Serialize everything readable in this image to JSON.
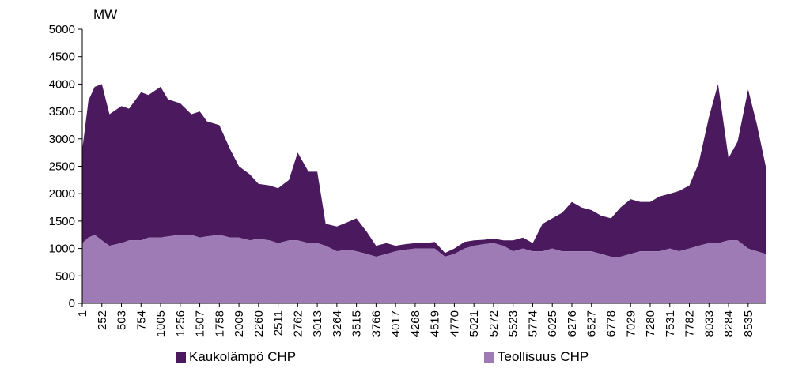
{
  "chart_data": {
    "type": "area",
    "stacked": true,
    "unit_label": "MW",
    "ylim": [
      0,
      5000
    ],
    "y_ticks": [
      0,
      500,
      1000,
      1500,
      2000,
      2500,
      3000,
      3500,
      4000,
      4500,
      5000
    ],
    "xlim": [
      1,
      8760
    ],
    "x_ticks": [
      1,
      252,
      503,
      754,
      1005,
      1256,
      1507,
      1758,
      2009,
      2260,
      2511,
      2762,
      3013,
      3264,
      3515,
      3766,
      4017,
      4268,
      4519,
      4770,
      5021,
      5272,
      5523,
      5774,
      6025,
      6276,
      6527,
      6778,
      7029,
      7280,
      7531,
      7782,
      8033,
      8284,
      8535
    ],
    "x": [
      1,
      80,
      160,
      252,
      350,
      503,
      600,
      754,
      850,
      1005,
      1100,
      1256,
      1400,
      1507,
      1600,
      1758,
      1900,
      2009,
      2150,
      2260,
      2400,
      2511,
      2650,
      2762,
      2900,
      3013,
      3120,
      3264,
      3400,
      3515,
      3650,
      3766,
      3900,
      4017,
      4150,
      4268,
      4400,
      4519,
      4650,
      4770,
      4900,
      5021,
      5150,
      5272,
      5400,
      5523,
      5650,
      5774,
      5900,
      6025,
      6150,
      6276,
      6400,
      6527,
      6650,
      6778,
      6900,
      7029,
      7150,
      7280,
      7400,
      7531,
      7650,
      7782,
      7900,
      8033,
      8150,
      8284,
      8400,
      8535,
      8650,
      8760
    ],
    "series": [
      {
        "name": "Teollisuus CHP",
        "color": "#9e7bb5",
        "values": [
          1100,
          1200,
          1250,
          1150,
          1050,
          1100,
          1150,
          1150,
          1200,
          1200,
          1220,
          1250,
          1250,
          1200,
          1220,
          1250,
          1200,
          1200,
          1150,
          1180,
          1150,
          1100,
          1150,
          1150,
          1100,
          1100,
          1050,
          950,
          980,
          950,
          900,
          850,
          900,
          950,
          980,
          1000,
          1000,
          1000,
          850,
          900,
          1000,
          1050,
          1080,
          1100,
          1050,
          950,
          1000,
          950,
          950,
          1000,
          950,
          950,
          950,
          950,
          900,
          850,
          850,
          900,
          950,
          950,
          950,
          1000,
          950,
          1000,
          1050,
          1100,
          1100,
          1150,
          1150,
          1000,
          950,
          900
        ]
      },
      {
        "name": "Kaukolämpö CHP",
        "color": "#4b1a5e",
        "values": [
          1700,
          2500,
          2700,
          2850,
          2400,
          2500,
          2400,
          2700,
          2600,
          2750,
          2500,
          2400,
          2200,
          2300,
          2100,
          2000,
          1600,
          1300,
          1200,
          1000,
          1000,
          1000,
          1100,
          1600,
          1300,
          1300,
          400,
          450,
          500,
          600,
          400,
          200,
          200,
          100,
          100,
          100,
          100,
          120,
          70,
          100,
          120,
          100,
          80,
          80,
          100,
          200,
          200,
          150,
          500,
          550,
          700,
          900,
          800,
          750,
          700,
          700,
          900,
          1000,
          900,
          900,
          1000,
          1000,
          1100,
          1150,
          1500,
          2300,
          2900,
          1500,
          1800,
          2900,
          2300,
          1600
        ]
      }
    ],
    "legend": {
      "placement": "bottom"
    }
  },
  "legend": {
    "item_1": "Kaukolämpö CHP",
    "item_2": "Teollisuus CHP"
  }
}
